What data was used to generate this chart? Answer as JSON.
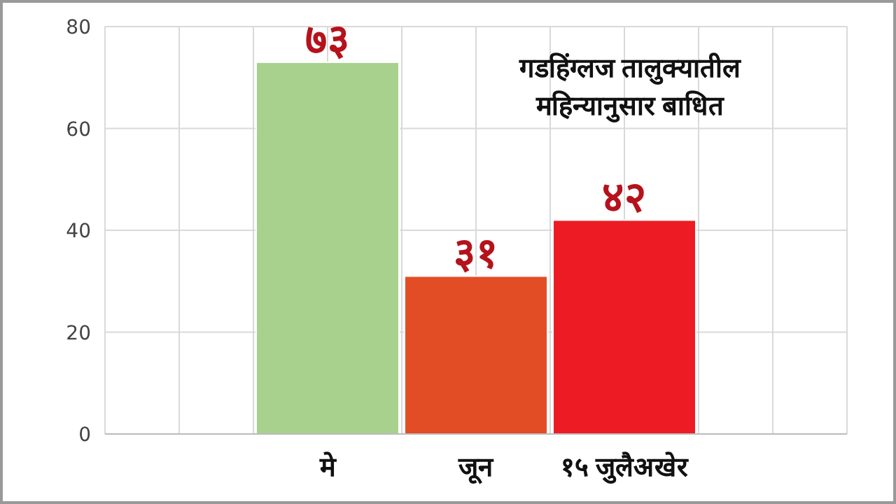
{
  "chart_data": {
    "type": "bar",
    "title": "गडहिंग्लज तालुक्यातील",
    "subtitle": "महिन्यानुसार बाधित",
    "categories": [
      null,
      "मे",
      "जून",
      "१५ जुलैअखेर",
      null
    ],
    "values": [
      null,
      73,
      31,
      42,
      null
    ],
    "colors": [
      null,
      "#a9d18e",
      "#e34d25",
      "#ed1c24",
      null
    ],
    "value_labels": [
      null,
      "७३",
      "३१",
      "४२",
      null
    ],
    "ylim": [
      0,
      80
    ],
    "yticks": [
      0,
      20,
      40,
      60,
      80
    ],
    "grid": true
  }
}
